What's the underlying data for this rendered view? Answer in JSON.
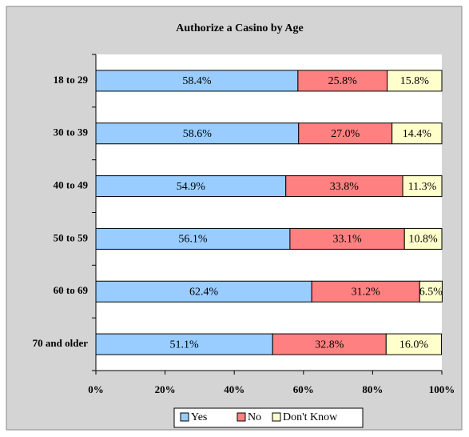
{
  "chart_data": {
    "type": "stacked_bar_horizontal",
    "title": "Authorize a Casino by Age",
    "categories": [
      "18 to 29",
      "30 to 39",
      "40 to 49",
      "50 to 59",
      "60 to 69",
      "70 and older"
    ],
    "series": [
      {
        "name": "Yes",
        "color": "#99ccff",
        "values": [
          58.4,
          58.6,
          54.9,
          56.1,
          62.4,
          51.1
        ],
        "value_labels": [
          "58.4%",
          "58.6%",
          "54.9%",
          "56.1%",
          "62.4%",
          "51.1%"
        ]
      },
      {
        "name": "No",
        "color": "#ff8080",
        "values": [
          25.8,
          27.0,
          33.8,
          33.1,
          31.2,
          32.8
        ],
        "value_labels": [
          "25.8%",
          "27.0%",
          "33.8%",
          "33.1%",
          "31.2%",
          "32.8%"
        ]
      },
      {
        "name": "Don't Know",
        "color": "#ffffcc",
        "values": [
          15.8,
          14.4,
          11.3,
          10.8,
          6.5,
          16.0
        ],
        "value_labels": [
          "15.8%",
          "14.4%",
          "11.3%",
          "10.8%",
          "6.5%",
          "16.0%"
        ]
      }
    ],
    "xlim": [
      0,
      100
    ],
    "xticks": [
      {
        "value": 0,
        "label": "0%"
      },
      {
        "value": 20,
        "label": "20%"
      },
      {
        "value": 40,
        "label": "40%"
      },
      {
        "value": 60,
        "label": "60%"
      },
      {
        "value": 80,
        "label": "80%"
      },
      {
        "value": 100,
        "label": "100%"
      }
    ],
    "legend": "bottom"
  }
}
